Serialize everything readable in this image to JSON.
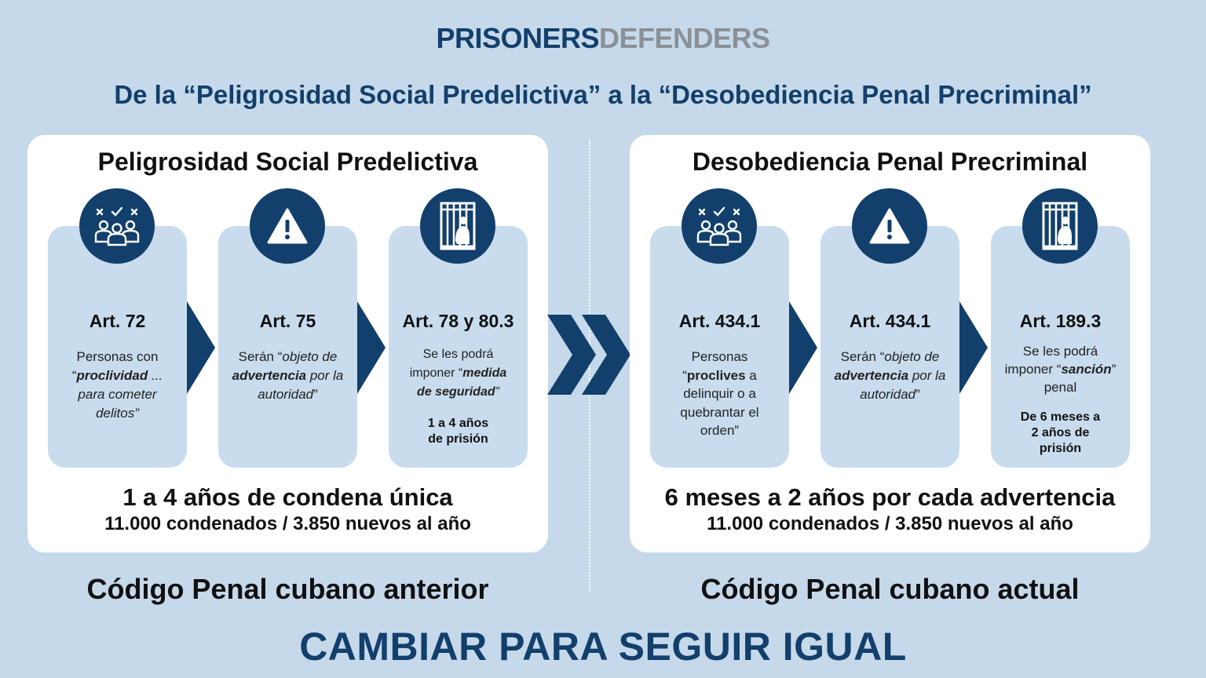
{
  "brand": {
    "part1": "PRISONERS",
    "part2": "DEFENDERS"
  },
  "headline": "De la “Peligrosidad Social Predelictiva” a la “Desobediencia Penal Precriminal”",
  "colors": {
    "navy": "#123f6b",
    "background": "#c6d9ea",
    "card": "#c8dced",
    "brand_gray": "#8a9097"
  },
  "left": {
    "title": "Peligrosidad Social Predelictiva",
    "summary": "1 a 4 años de condena única",
    "stats": "11.000 condenados / 3.850 nuevos al año",
    "code_label": "Código Penal cubano anterior",
    "cards": [
      {
        "icon": "people-selection-icon",
        "article": "Art. 72",
        "d1": "Personas con",
        "d2": "“",
        "d3": "proclividad",
        "d4": " ...",
        "d5": "para cometer",
        "d6": "delitos”"
      },
      {
        "icon": "warning-icon",
        "article": "Art. 75",
        "d1": "Serán “",
        "d2": "objeto de",
        "d3": "advertencia",
        "d4": " por la",
        "d5": "autoridad",
        "d6": "”"
      },
      {
        "icon": "prison-icon",
        "article": "Art. 78 y 80.3",
        "d1": "Se les podrá",
        "d2": "imponer “",
        "d3": "medida",
        "d4": "de seguridad",
        "d5": "”",
        "s1": "1 a 4 años",
        "s2": "de prisión"
      }
    ]
  },
  "right": {
    "title": "Desobediencia Penal Precriminal",
    "summary": "6 meses a 2 años por cada advertencia",
    "stats": "11.000 condenados / 3.850 nuevos al año",
    "code_label": "Código Penal cubano actual",
    "cards": [
      {
        "icon": "people-selection-icon",
        "article": "Art. 434.1",
        "d1": "Personas",
        "d2": "“",
        "d3": "proclives",
        "d4": " a",
        "d5": "delinquir o a",
        "d6": "quebrantar el",
        "d7": "orden”"
      },
      {
        "icon": "warning-icon",
        "article": "Art. 434.1",
        "d1": "Serán “",
        "d2": "objeto de",
        "d3": "advertencia",
        "d4": " por la",
        "d5": "autoridad",
        "d6": "”"
      },
      {
        "icon": "prison-icon",
        "article": "Art. 189.3",
        "d1": "Se les podrá",
        "d2": "imponer “",
        "d3": "sanción",
        "d4": "”",
        "d5": "penal",
        "s1": "De 6 meses a",
        "s2": "2 años de",
        "s3": "prisión"
      }
    ]
  },
  "motto": "CAMBIAR PARA SEGUIR IGUAL"
}
